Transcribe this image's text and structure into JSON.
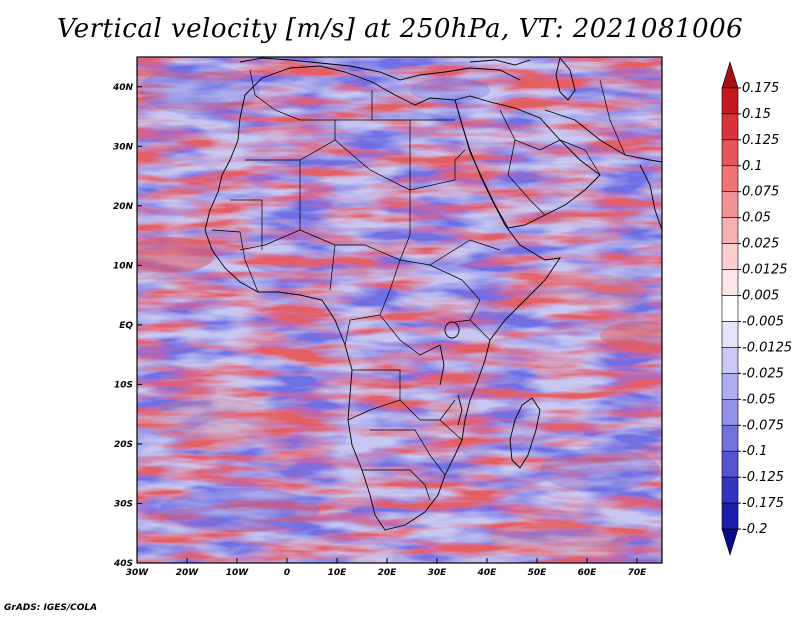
{
  "title": "Vertical velocity [m/s] at 250hPa, VT: 2021081006",
  "credit": "GrADS: IGES/COLA",
  "map": {
    "lon_labels": [
      "30W",
      "20W",
      "10W",
      "0",
      "10E",
      "20E",
      "30E",
      "40E",
      "50E",
      "60E",
      "70E"
    ],
    "lat_labels": [
      "40N",
      "30N",
      "20N",
      "10N",
      "EQ",
      "10S",
      "20S",
      "30S",
      "40S"
    ],
    "lon_values": [
      -30,
      -20,
      -10,
      0,
      10,
      20,
      30,
      40,
      50,
      60,
      70
    ],
    "lat_values": [
      40,
      30,
      20,
      10,
      0,
      -10,
      -20,
      -30,
      -40
    ],
    "lon_range": [
      -30,
      75
    ],
    "lat_range": [
      -40,
      45
    ]
  },
  "colorbar": {
    "labels": [
      "0.175",
      "0.15",
      "0.125",
      "0.1",
      "0.075",
      "0.05",
      "0.025",
      "0.0125",
      "0.005",
      "-0.005",
      "-0.0125",
      "-0.025",
      "-0.05",
      "-0.075",
      "-0.1",
      "-0.125",
      "-0.175",
      "-0.2"
    ],
    "colors": [
      "#a50f15",
      "#c41a1f",
      "#d8343a",
      "#e6555a",
      "#ee7478",
      "#f39396",
      "#f7b0b2",
      "#fbcdcf",
      "#fde6e6",
      "#ffffff",
      "#e4e4fb",
      "#c9c9f6",
      "#adadf0",
      "#9191e9",
      "#7373df",
      "#5454d2",
      "#3434bf",
      "#1c1ca8",
      "#0b0b8a"
    ]
  },
  "colors": {
    "positive": "#e8666a",
    "negative": "#7070e0",
    "neutral": "#ffffff"
  }
}
